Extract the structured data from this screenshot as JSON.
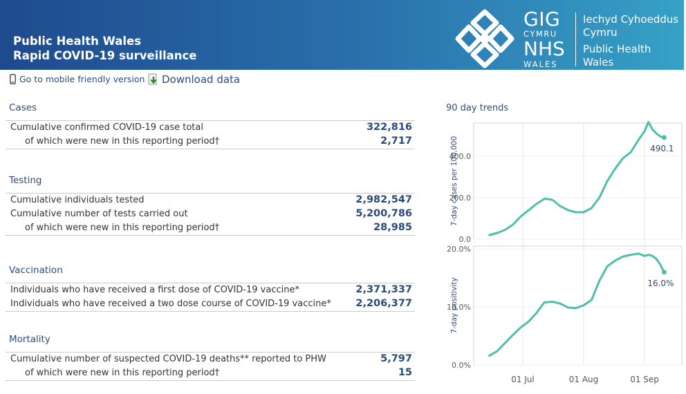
{
  "header": {
    "title_line1": "Public Health Wales",
    "title_line2": "Rapid COVID-19 surveillance",
    "logo_gig": "GIG",
    "logo_cymru": "CYMRU",
    "logo_nhs": "NHS",
    "logo_wales": "WALES",
    "org_lines": [
      "Iechyd Cyhoeddus",
      "Cymru",
      "Public Health",
      "Wales"
    ]
  },
  "toolbar": {
    "mobile_label": "Go to mobile friendly version",
    "download_label": "Download data"
  },
  "sections": {
    "cases": {
      "title": "Cases",
      "rows": [
        {
          "label": "Cumulative confirmed COVID-19 case total",
          "value": "322,816"
        },
        {
          "label": "of which were new in this reporting period†",
          "value": "2,717"
        }
      ]
    },
    "testing": {
      "title": "Testing",
      "rows": [
        {
          "label": "Cumulative individuals tested",
          "value": "2,982,547"
        },
        {
          "label": "Cumulative number of tests carried out",
          "value": "5,200,786"
        },
        {
          "label": "of which were new in this reporting period†",
          "value": "28,985"
        }
      ]
    },
    "vaccination": {
      "title": "Vaccination",
      "rows": [
        {
          "label": "Individuals who have received a first dose of COVID-19 vaccine*",
          "value": "2,371,337"
        },
        {
          "label": "Individuals who have received a two dose course of COVID-19 vaccine*",
          "value": "2,206,377"
        }
      ]
    },
    "mortality": {
      "title": "Mortality",
      "rows": [
        {
          "label": "Cumulative number of suspected COVID-19 deaths** reported to PHW",
          "value": "5,797"
        },
        {
          "label": "of which were new in this reporting period†",
          "value": "15"
        }
      ]
    }
  },
  "trends_title": "90 day trends",
  "colors": {
    "line": "#4dbfa9",
    "accent": "#2e4a7a"
  },
  "chart_data": [
    {
      "type": "line",
      "ylabel": "7-day cases per 100,000",
      "ylim": [
        0,
        560
      ],
      "yticks": [
        0,
        200,
        400
      ],
      "ytick_labels": [
        "0.0",
        "200.0",
        "400.0"
      ],
      "last_label": "490.1",
      "x": [
        "2021-06-14",
        "2021-06-18",
        "2021-06-22",
        "2021-06-26",
        "2021-06-30",
        "2021-07-04",
        "2021-07-08",
        "2021-07-12",
        "2021-07-16",
        "2021-07-20",
        "2021-07-24",
        "2021-07-28",
        "2021-08-01",
        "2021-08-05",
        "2021-08-09",
        "2021-08-13",
        "2021-08-17",
        "2021-08-21",
        "2021-08-25",
        "2021-08-29",
        "2021-09-01",
        "2021-09-03",
        "2021-09-05",
        "2021-09-07",
        "2021-09-09",
        "2021-09-11"
      ],
      "y": [
        20,
        30,
        45,
        70,
        110,
        140,
        170,
        195,
        190,
        160,
        140,
        130,
        130,
        150,
        200,
        280,
        340,
        390,
        420,
        480,
        520,
        565,
        530,
        510,
        495,
        490.1
      ]
    },
    {
      "type": "line",
      "ylabel": "7-day positivity",
      "ylim": [
        0,
        20.5
      ],
      "yticks": [
        0,
        10,
        20
      ],
      "ytick_labels": [
        "0.0%",
        "10.0%",
        "20.0%"
      ],
      "last_label": "16.0%",
      "x": [
        "2021-06-14",
        "2021-06-18",
        "2021-06-22",
        "2021-06-26",
        "2021-06-30",
        "2021-07-04",
        "2021-07-08",
        "2021-07-12",
        "2021-07-16",
        "2021-07-20",
        "2021-07-24",
        "2021-07-28",
        "2021-08-01",
        "2021-08-05",
        "2021-08-09",
        "2021-08-13",
        "2021-08-17",
        "2021-08-21",
        "2021-08-25",
        "2021-08-29",
        "2021-09-01",
        "2021-09-03",
        "2021-09-05",
        "2021-09-07",
        "2021-09-09",
        "2021-09-11"
      ],
      "y": [
        1.6,
        2.4,
        3.8,
        5.2,
        6.5,
        7.5,
        9.0,
        10.8,
        10.9,
        10.6,
        9.9,
        9.8,
        10.3,
        11.2,
        14.5,
        17.0,
        18.0,
        18.7,
        19.0,
        19.2,
        18.8,
        19.0,
        18.8,
        18.3,
        17.3,
        16.0
      ]
    }
  ],
  "x_axis": {
    "tick_dates": [
      "2021-07-01",
      "2021-08-01",
      "2021-09-01"
    ],
    "tick_labels": [
      "01 Jul",
      "01 Aug",
      "01 Sep"
    ]
  }
}
